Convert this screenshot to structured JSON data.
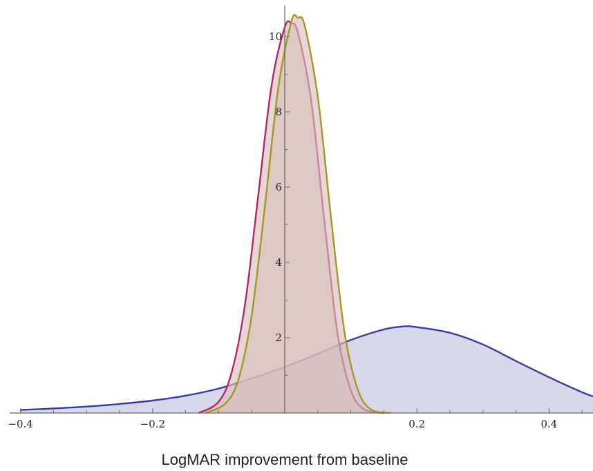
{
  "chart_data": {
    "type": "area",
    "title": "",
    "xlabel": "LogMAR improvement from baseline",
    "ylabel": "",
    "xlim": [
      -0.41,
      0.47
    ],
    "ylim": [
      0,
      10.6
    ],
    "x_ticks": [
      -0.4,
      -0.2,
      0.2,
      0.4
    ],
    "x_tick_labels": [
      "−0.4",
      "−0.2",
      "0.2",
      "0.4"
    ],
    "y_ticks": [
      2,
      4,
      6,
      8,
      10
    ],
    "y_tick_labels": [
      "2",
      "4",
      "6",
      "8",
      "10"
    ],
    "grid": false,
    "legend": "none",
    "series": [
      {
        "color": "#3b3aa0",
        "fill": "#d6d6ec",
        "x": [
          -0.4,
          -0.35,
          -0.3,
          -0.25,
          -0.2,
          -0.15,
          -0.1,
          -0.05,
          0.0,
          0.05,
          0.1,
          0.15,
          0.18,
          0.2,
          0.25,
          0.3,
          0.35,
          0.4,
          0.45,
          0.47
        ],
        "y": [
          0.08,
          0.12,
          0.17,
          0.24,
          0.33,
          0.46,
          0.65,
          0.92,
          1.22,
          1.57,
          1.94,
          2.22,
          2.3,
          2.28,
          2.13,
          1.82,
          1.38,
          0.95,
          0.55,
          0.42
        ]
      },
      {
        "color": "#b0286a",
        "fill": "#d9bfb9",
        "x": [
          -0.13,
          -0.1,
          -0.08,
          -0.06,
          -0.04,
          -0.02,
          0.0,
          0.01,
          0.02,
          0.04,
          0.06,
          0.08,
          0.1,
          0.12,
          0.15
        ],
        "y": [
          0.0,
          0.3,
          1.1,
          2.9,
          5.8,
          8.7,
          10.25,
          10.35,
          10.1,
          8.3,
          5.1,
          2.1,
          0.6,
          0.1,
          0.0
        ]
      },
      {
        "color": "#a7952a",
        "fill": "#d9bfb9",
        "x": [
          -0.12,
          -0.09,
          -0.07,
          -0.05,
          -0.03,
          -0.01,
          0.01,
          0.02,
          0.03,
          0.05,
          0.07,
          0.09,
          0.11,
          0.13,
          0.16
        ],
        "y": [
          0.0,
          0.25,
          0.9,
          2.6,
          5.5,
          8.6,
          10.4,
          10.5,
          10.3,
          8.4,
          5.2,
          2.2,
          0.65,
          0.1,
          0.0
        ]
      }
    ]
  }
}
